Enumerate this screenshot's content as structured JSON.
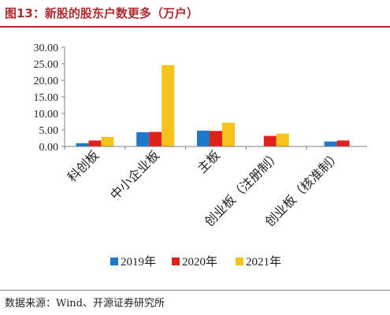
{
  "figure_title": "图13：新股的股东户数更多（万户）",
  "source_note": "数据来源：Wind、开源证券研究所",
  "colors": {
    "2019年": "#1f78c8",
    "2020年": "#e0201b",
    "2021年": "#f6c21c"
  },
  "chart_data": {
    "type": "bar",
    "title": "",
    "xlabel": "",
    "ylabel": "",
    "categories": [
      "科创板",
      "中小企业板",
      "主板",
      "创业板（注册制）",
      "创业板（核准制）"
    ],
    "series": [
      {
        "name": "2019年",
        "values": [
          1.0,
          4.3,
          4.8,
          null,
          1.5
        ]
      },
      {
        "name": "2020年",
        "values": [
          1.8,
          4.4,
          4.7,
          3.2,
          1.8
        ]
      },
      {
        "name": "2021年",
        "values": [
          2.9,
          24.6,
          7.2,
          3.9,
          null
        ]
      }
    ],
    "ylim": [
      0,
      30
    ],
    "yticks": [
      "0.00",
      "5.00",
      "10.00",
      "15.00",
      "20.00",
      "25.00",
      "30.00"
    ],
    "grid": false,
    "legend": "bottom"
  }
}
